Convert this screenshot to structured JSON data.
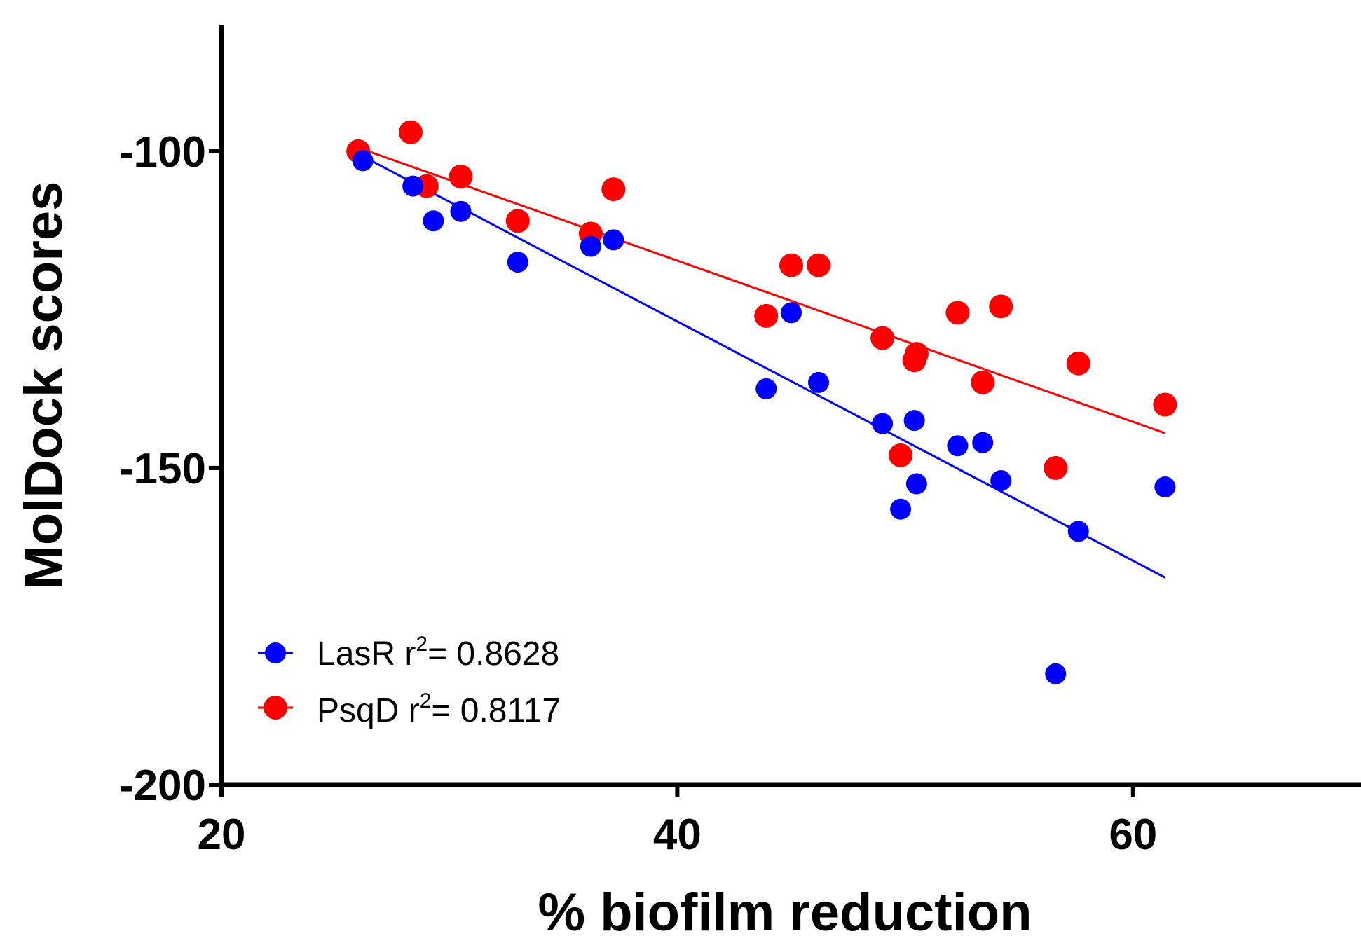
{
  "chart_data": {
    "type": "scatter",
    "title": "",
    "xlabel": "% biofilm reduction",
    "ylabel": "MolDock scores",
    "xlim": [
      20,
      70
    ],
    "ylim": [
      -200,
      -80
    ],
    "x_ticks": [
      20,
      40,
      60
    ],
    "x_tick_labels": [
      "20",
      "40",
      "60"
    ],
    "y_ticks": [
      -200,
      -150,
      -100
    ],
    "y_tick_labels": [
      "-200",
      "-150",
      "-100"
    ],
    "grid": false,
    "legend_position": "bottom-left",
    "series": [
      {
        "name": "LasR",
        "legend_prefix": "LasR  r",
        "legend_sup": "2",
        "legend_suffix": "= 0.8628",
        "color": "#0000ff",
        "points": [
          {
            "x": 26.2,
            "y": -101.5
          },
          {
            "x": 28.4,
            "y": -105.5
          },
          {
            "x": 29.3,
            "y": -111.0
          },
          {
            "x": 30.5,
            "y": -109.5
          },
          {
            "x": 33.0,
            "y": -117.5
          },
          {
            "x": 36.2,
            "y": -115.0
          },
          {
            "x": 37.2,
            "y": -114.0
          },
          {
            "x": 43.9,
            "y": -137.5
          },
          {
            "x": 45.0,
            "y": -125.5
          },
          {
            "x": 46.2,
            "y": -136.5
          },
          {
            "x": 49.0,
            "y": -143.0
          },
          {
            "x": 49.8,
            "y": -156.5
          },
          {
            "x": 50.4,
            "y": -142.5
          },
          {
            "x": 50.5,
            "y": -152.5
          },
          {
            "x": 52.3,
            "y": -146.5
          },
          {
            "x": 53.4,
            "y": -146.0
          },
          {
            "x": 54.2,
            "y": -152.0
          },
          {
            "x": 56.6,
            "y": -182.5
          },
          {
            "x": 57.6,
            "y": -160.0
          },
          {
            "x": 61.4,
            "y": -153.0
          }
        ],
        "fit": {
          "x": [
            26.2,
            61.4
          ],
          "y": [
            -100.8,
            -167.3
          ]
        }
      },
      {
        "name": "PsqD",
        "legend_prefix": "PsqD r",
        "legend_sup": "2",
        "legend_suffix": "= 0.8117",
        "color": "#ff0000",
        "points": [
          {
            "x": 26.0,
            "y": -100.0
          },
          {
            "x": 28.3,
            "y": -97.0
          },
          {
            "x": 29.0,
            "y": -105.5
          },
          {
            "x": 30.5,
            "y": -104.0
          },
          {
            "x": 33.0,
            "y": -111.0
          },
          {
            "x": 36.2,
            "y": -113.0
          },
          {
            "x": 37.2,
            "y": -106.0
          },
          {
            "x": 43.9,
            "y": -126.0
          },
          {
            "x": 45.0,
            "y": -118.0
          },
          {
            "x": 46.2,
            "y": -118.0
          },
          {
            "x": 49.0,
            "y": -129.5
          },
          {
            "x": 49.8,
            "y": -148.0
          },
          {
            "x": 50.4,
            "y": -133.0
          },
          {
            "x": 50.5,
            "y": -132.0
          },
          {
            "x": 52.3,
            "y": -125.5
          },
          {
            "x": 53.4,
            "y": -136.5
          },
          {
            "x": 54.2,
            "y": -124.5
          },
          {
            "x": 56.6,
            "y": -150.0
          },
          {
            "x": 57.6,
            "y": -133.5
          },
          {
            "x": 61.4,
            "y": -140.0
          }
        ],
        "fit": {
          "x": [
            26.2,
            61.4
          ],
          "y": [
            -99.7,
            -144.5
          ]
        }
      }
    ]
  }
}
